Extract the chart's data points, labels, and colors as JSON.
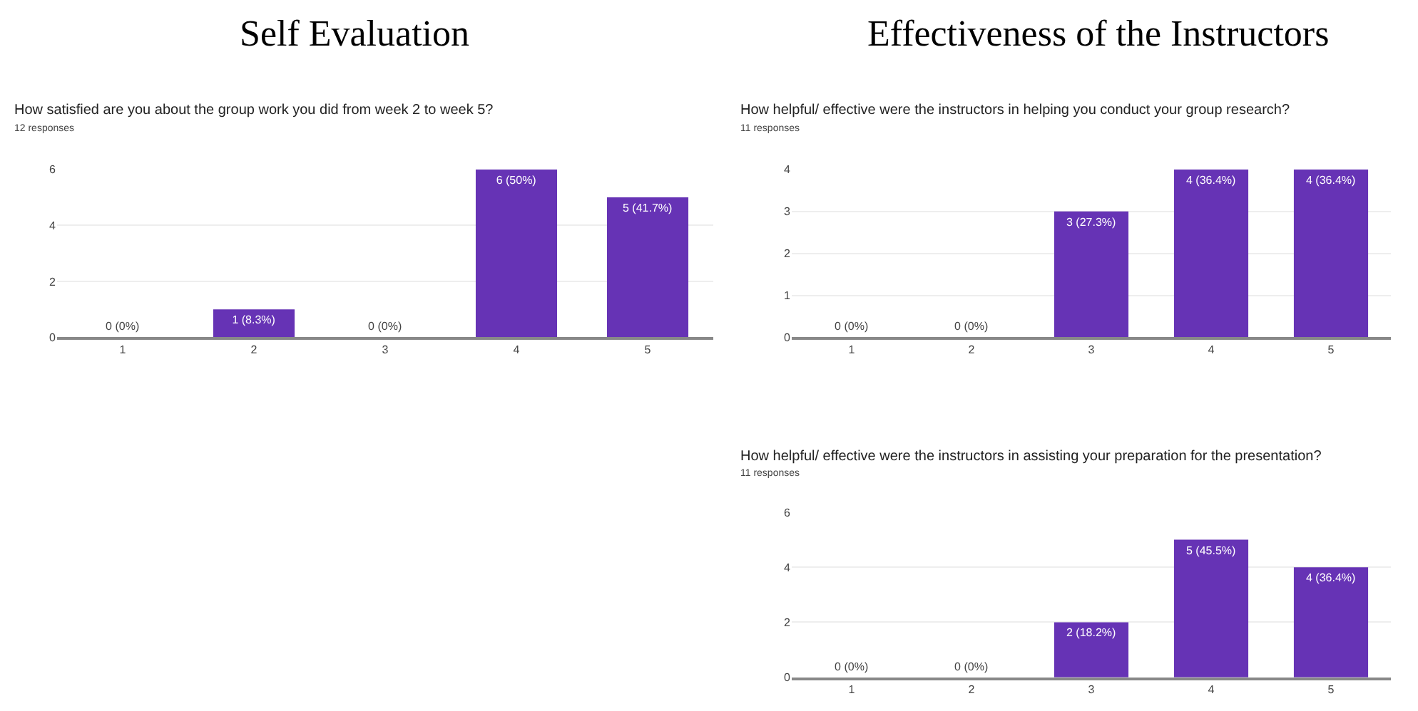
{
  "chart_data": [
    {
      "type": "bar",
      "title": "Self Evaluation",
      "subtitle": "How satisfied are you about the group work you did from week 2 to week 5?",
      "annotations": [
        "12 responses"
      ],
      "categories": [
        "1",
        "2",
        "3",
        "4",
        "5"
      ],
      "values": [
        0,
        1,
        0,
        6,
        5
      ],
      "value_labels": [
        "0 (0%)",
        "1 (8.3%)",
        "0 (0%)",
        "6 (50%)",
        "5 (41.7%)"
      ],
      "color": "#6633b5",
      "ylim": [
        0,
        6
      ],
      "yticks": [
        0,
        2,
        4,
        6
      ],
      "grid": "y"
    },
    {
      "type": "bar",
      "title": "Effectiveness of the Instructors",
      "subtitle": "How helpful/ effective were the instructors in helping you conduct your group research?",
      "annotations": [
        "11 responses"
      ],
      "categories": [
        "1",
        "2",
        "3",
        "4",
        "5"
      ],
      "values": [
        0,
        0,
        3,
        4,
        4
      ],
      "value_labels": [
        "0 (0%)",
        "0 (0%)",
        "3 (27.3%)",
        "4 (36.4%)",
        "4 (36.4%)"
      ],
      "color": "#6633b5",
      "ylim": [
        0,
        4
      ],
      "yticks": [
        0,
        1,
        2,
        3,
        4
      ],
      "grid": "y"
    },
    {
      "type": "bar",
      "subtitle": "How helpful/ effective were the instructors in assisting your preparation for the presentation?",
      "annotations": [
        "11 responses"
      ],
      "categories": [
        "1",
        "2",
        "3",
        "4",
        "5"
      ],
      "values": [
        0,
        0,
        2,
        5,
        4
      ],
      "value_labels": [
        "0 (0%)",
        "0 (0%)",
        "2 (18.2%)",
        "5 (45.5%)",
        "4 (36.4%)"
      ],
      "color": "#6633b5",
      "ylim": [
        0,
        6
      ],
      "yticks": [
        0,
        2,
        4,
        6
      ],
      "grid": "y"
    }
  ]
}
